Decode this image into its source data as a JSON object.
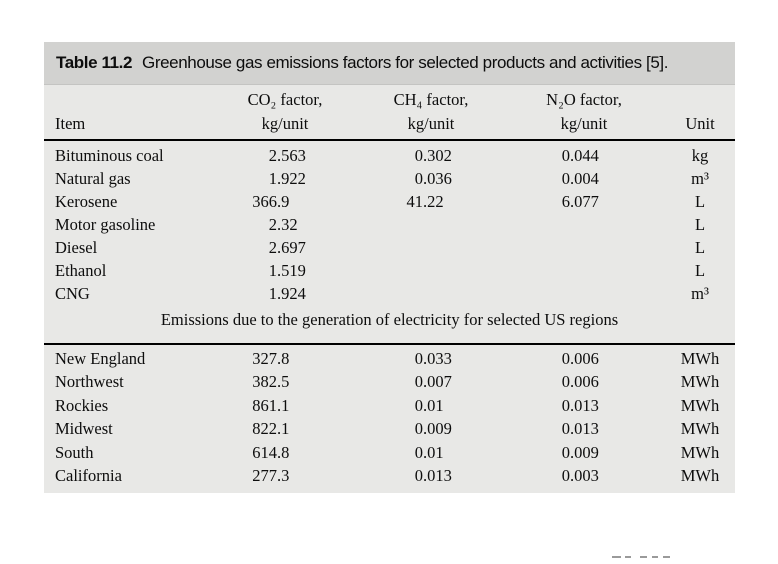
{
  "table": {
    "label": "Table 11.2",
    "caption": "Greenhouse gas emissions factors for selected products and activities [5].",
    "colors": {
      "caption_band": "#d2d2d0",
      "body_band": "#e8e8e6",
      "rule": "#000000"
    },
    "header": {
      "item": "Item",
      "co2_line1": "CO₂ factor,",
      "co2_line2": "kg/unit",
      "ch4_line1": "CH₄ factor,",
      "ch4_line2": "kg/unit",
      "n2o_line1": "N₂O factor,",
      "n2o_line2": "kg/unit",
      "unit": "Unit"
    },
    "fuel_rows": [
      {
        "item": "Bituminous coal",
        "co2": "2.563",
        "ch4": "0.302",
        "n2o": "0.044",
        "unit": "kg"
      },
      {
        "item": "Natural gas",
        "co2": "1.922",
        "ch4": "0.036",
        "n2o": "0.004",
        "unit": "m³"
      },
      {
        "item": "Kerosene",
        "co2": "366.9",
        "ch4": "41.22",
        "n2o": "6.077",
        "unit": "L"
      },
      {
        "item": "Motor gasoline",
        "co2": "2.32",
        "ch4": "",
        "n2o": "",
        "unit": "L"
      },
      {
        "item": "Diesel",
        "co2": "2.697",
        "ch4": "",
        "n2o": "",
        "unit": "L"
      },
      {
        "item": "Ethanol",
        "co2": "1.519",
        "ch4": "",
        "n2o": "",
        "unit": "L"
      },
      {
        "item": "CNG",
        "co2": "1.924",
        "ch4": "",
        "n2o": "",
        "unit": "m³"
      }
    ],
    "section_note": "Emissions due to the generation of electricity for selected US regions",
    "region_rows": [
      {
        "item": "New England",
        "co2": "327.8",
        "ch4": "0.033",
        "n2o": "0.006",
        "unit": "MWh"
      },
      {
        "item": "Northwest",
        "co2": "382.5",
        "ch4": "0.007",
        "n2o": "0.006",
        "unit": "MWh"
      },
      {
        "item": "Rockies",
        "co2": "861.1",
        "ch4": "0.01",
        "n2o": "0.013",
        "unit": "MWh"
      },
      {
        "item": "Midwest",
        "co2": "822.1",
        "ch4": "0.009",
        "n2o": "0.013",
        "unit": "MWh"
      },
      {
        "item": "South",
        "co2": "614.8",
        "ch4": "0.01",
        "n2o": "0.009",
        "unit": "MWh"
      },
      {
        "item": "California",
        "co2": "277.3",
        "ch4": "0.013",
        "n2o": "0.003",
        "unit": "MWh"
      }
    ]
  }
}
